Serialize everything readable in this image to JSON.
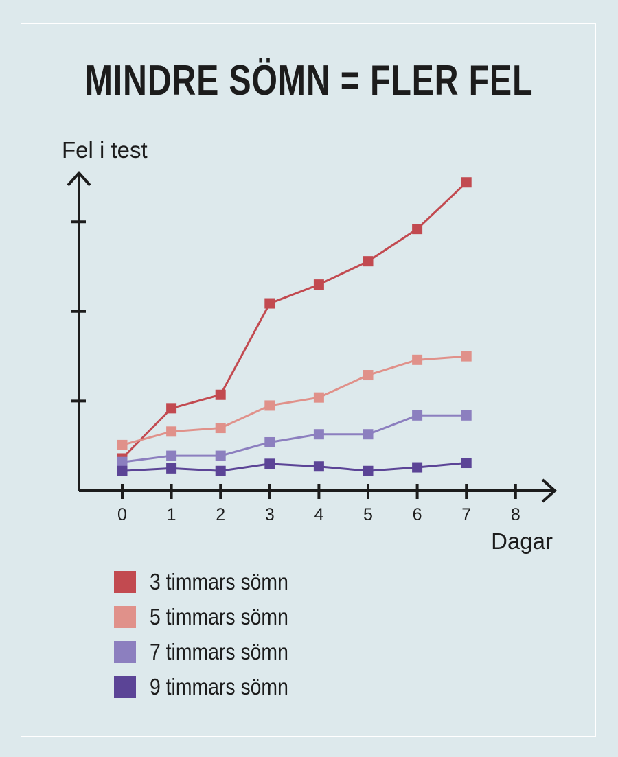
{
  "chart_data": {
    "type": "line",
    "title": "MINDRE SÖMN = FLER FEL",
    "ylabel": "Fel i test",
    "xlabel": "Dagar",
    "x_ticks": [
      "0",
      "1",
      "2",
      "3",
      "4",
      "5",
      "6",
      "7",
      "8"
    ],
    "x": [
      0,
      1,
      2,
      3,
      4,
      5,
      6,
      7
    ],
    "xlim": [
      0,
      8
    ],
    "ylim": [
      0,
      4
    ],
    "y_ticks_labeled": false,
    "grid": false,
    "legend_position": "bottom-left",
    "series": [
      {
        "name": "3 timmars sömn",
        "color": "#c24a50",
        "values": [
          0.36,
          0.92,
          1.07,
          2.09,
          2.3,
          2.56,
          2.92,
          3.44
        ]
      },
      {
        "name": "5 timmars sömn",
        "color": "#e0918a",
        "values": [
          0.51,
          0.66,
          0.7,
          0.95,
          1.04,
          1.29,
          1.46,
          1.5
        ]
      },
      {
        "name": "7 timmars sömn",
        "color": "#8c7fbf",
        "values": [
          0.32,
          0.39,
          0.39,
          0.54,
          0.63,
          0.63,
          0.84,
          0.84
        ]
      },
      {
        "name": "9 timmars sömn",
        "color": "#5b4496",
        "values": [
          0.22,
          0.25,
          0.22,
          0.3,
          0.27,
          0.22,
          0.26,
          0.31
        ]
      }
    ]
  }
}
